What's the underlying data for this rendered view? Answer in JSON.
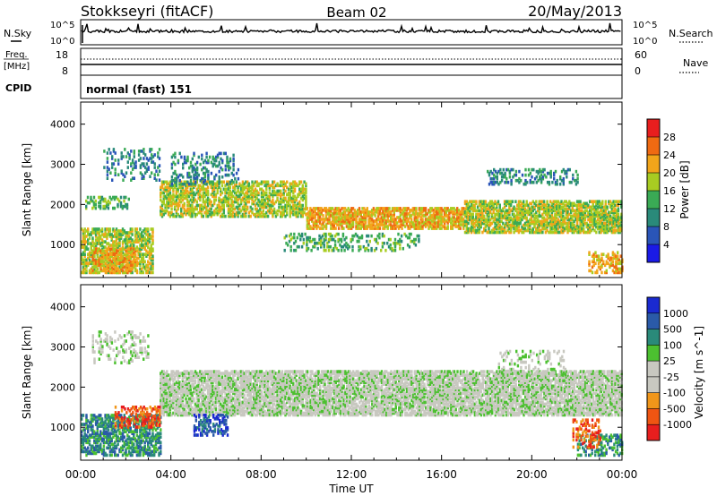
{
  "header": {
    "station": "Stokkseyri (fitACF)",
    "beam": "Beam 02",
    "date": "20/May/2013"
  },
  "panels": {
    "nsky_label": "N.Sky",
    "nsearch_label": "N.Search",
    "freq_label_1": "Freq.",
    "freq_label_2": "[MHz]",
    "nave_label": "Nave",
    "cpid_label": "CPID",
    "cpid_text": "normal (fast) 151",
    "count_ticks_left": [
      "10^5",
      "10^0"
    ],
    "count_ticks_right": [
      "10^5",
      "10^0"
    ],
    "freq_ticks": [
      "18",
      "8"
    ],
    "nave_ticks": [
      "60",
      "0"
    ]
  },
  "colors": {
    "power_scale": [
      "#1a1ae6",
      "#2a55b8",
      "#2a8a7a",
      "#3aaa55",
      "#a8cc22",
      "#f2a51a",
      "#ef6a12",
      "#e81e1e"
    ],
    "velocity_scale": [
      "#e81e1e",
      "#ef5512",
      "#f0961a",
      "#c8c8c0",
      "#c8c8c0",
      "#4cc030",
      "#2a8a7a",
      "#2a5aa8",
      "#1a2ad0"
    ]
  },
  "chart_data": [
    {
      "type": "heatmap",
      "title": "Power",
      "ylabel": "Slant Range [km]",
      "xlabel": "Time UT",
      "x_ticks": [
        "00:00",
        "04:00",
        "08:00",
        "12:00",
        "16:00",
        "20:00",
        "00:00"
      ],
      "y_ticks": [
        "1000",
        "2000",
        "3000",
        "4000"
      ],
      "ylim": [
        180,
        4550
      ],
      "xlim_hours": [
        0,
        24
      ],
      "colorbar_label": "Power [dB]",
      "colorbar_ticks": [
        "4",
        "8",
        "12",
        "16",
        "20",
        "24",
        "28"
      ],
      "scatter_regions": [
        {
          "t0": 0.2,
          "t1": 2.2,
          "r0": 1900,
          "r1": 2200,
          "density": 0.35,
          "level": 3
        },
        {
          "t0": 1.0,
          "t1": 3.5,
          "r0": 2600,
          "r1": 3400,
          "density": 0.18,
          "level": 2
        },
        {
          "t0": 0.0,
          "t1": 3.2,
          "r0": 300,
          "r1": 1400,
          "density": 0.55,
          "level": 4
        },
        {
          "t0": 0.5,
          "t1": 2.5,
          "r0": 300,
          "r1": 900,
          "density": 0.6,
          "level": 5
        },
        {
          "t0": 3.5,
          "t1": 10.0,
          "r0": 1700,
          "r1": 2600,
          "density": 0.55,
          "level": 4
        },
        {
          "t0": 10.0,
          "t1": 17.0,
          "r0": 1400,
          "r1": 1900,
          "density": 0.65,
          "level": 5
        },
        {
          "t0": 17.0,
          "t1": 24.0,
          "r0": 1300,
          "r1": 2100,
          "density": 0.65,
          "level": 4
        },
        {
          "t0": 18.0,
          "t1": 22.0,
          "r0": 2500,
          "r1": 2900,
          "density": 0.28,
          "level": 2
        },
        {
          "t0": 9.0,
          "t1": 15.0,
          "r0": 850,
          "r1": 1300,
          "density": 0.25,
          "level": 3
        },
        {
          "t0": 22.5,
          "t1": 24.0,
          "r0": 300,
          "r1": 800,
          "density": 0.35,
          "level": 5
        },
        {
          "t0": 4.0,
          "t1": 7.0,
          "r0": 2500,
          "r1": 3300,
          "density": 0.25,
          "level": 2
        }
      ]
    },
    {
      "type": "heatmap",
      "title": "Velocity",
      "ylabel": "Slant Range [km]",
      "xlabel": "Time UT",
      "x_ticks": [
        "00:00",
        "04:00",
        "08:00",
        "12:00",
        "16:00",
        "20:00",
        "00:00"
      ],
      "y_ticks": [
        "1000",
        "2000",
        "3000",
        "4000"
      ],
      "ylim": [
        180,
        4550
      ],
      "xlim_hours": [
        0,
        24
      ],
      "colorbar_label": "Velocity [m s^-1]",
      "colorbar_ticks": [
        "1000",
        "500",
        "100",
        "25",
        "-25",
        "-100",
        "-500",
        "-1000"
      ],
      "scatter_regions": [
        {
          "t0": 3.5,
          "t1": 24.0,
          "r0": 1300,
          "r1": 2400,
          "density": 0.7,
          "level": 4
        },
        {
          "t0": 0.0,
          "t1": 3.5,
          "r0": 300,
          "r1": 1300,
          "density": 0.55,
          "level": 6
        },
        {
          "t0": 1.5,
          "t1": 3.5,
          "r0": 1000,
          "r1": 1500,
          "density": 0.45,
          "level": 1
        },
        {
          "t0": 0.5,
          "t1": 3.0,
          "r0": 2600,
          "r1": 3400,
          "density": 0.2,
          "level": 4
        },
        {
          "t0": 5.0,
          "t1": 6.5,
          "r0": 800,
          "r1": 1300,
          "density": 0.4,
          "level": 7
        },
        {
          "t0": 18.5,
          "t1": 21.5,
          "r0": 2300,
          "r1": 2900,
          "density": 0.2,
          "level": 4
        },
        {
          "t0": 22.0,
          "t1": 24.0,
          "r0": 300,
          "r1": 800,
          "density": 0.35,
          "level": 6
        },
        {
          "t0": 21.8,
          "t1": 23.0,
          "r0": 500,
          "r1": 1200,
          "density": 0.3,
          "level": 1
        }
      ]
    }
  ]
}
